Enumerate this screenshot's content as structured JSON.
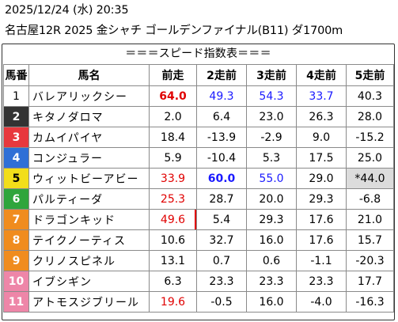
{
  "header": {
    "line1": "2025/12/24 (水) 20:35",
    "line2": "名古屋12R 2025 金シャチ ゴールデンファイナル(B11) ダ1700m"
  },
  "table": {
    "subtitle": "＝＝＝スピード指数表＝＝＝",
    "columns": [
      "馬番",
      "馬名",
      "前走",
      "2走前",
      "3走前",
      "4走前",
      "5走前"
    ],
    "rows": [
      {
        "num": "1",
        "name": "バレアリックシー",
        "v": [
          "64.0",
          "49.3",
          "54.3",
          "33.7",
          "40.3"
        ]
      },
      {
        "num": "2",
        "name": "キタノダロマ",
        "v": [
          "2.0",
          "6.4",
          "23.0",
          "26.3",
          "28.0"
        ]
      },
      {
        "num": "3",
        "name": "カムイパイヤ",
        "v": [
          "18.4",
          "-13.9",
          "-2.9",
          "9.0",
          "-15.2"
        ]
      },
      {
        "num": "4",
        "name": "コンジュラー",
        "v": [
          "5.9",
          "-10.4",
          "5.3",
          "17.5",
          "25.0"
        ]
      },
      {
        "num": "5",
        "name": "ウィットビーアビー",
        "v": [
          "33.9",
          "60.0",
          "55.0",
          "29.0",
          "*44.0"
        ]
      },
      {
        "num": "6",
        "name": "パルティーダ",
        "v": [
          "25.3",
          "28.7",
          "20.0",
          "29.3",
          "-6.8"
        ]
      },
      {
        "num": "7",
        "name": "ドラゴンキッド",
        "v": [
          "49.6",
          "5.4",
          "29.3",
          "17.6",
          "21.0"
        ]
      },
      {
        "num": "8",
        "name": "テイクノーティス",
        "v": [
          "10.6",
          "32.7",
          "16.0",
          "17.6",
          "15.7"
        ]
      },
      {
        "num": "9",
        "name": "クリノスピネル",
        "v": [
          "13.1",
          "0.7",
          "0.6",
          "-1.1",
          "-20.3"
        ]
      },
      {
        "num": "10",
        "name": "イブシギン",
        "v": [
          "6.3",
          "23.3",
          "23.3",
          "23.3",
          "17.7"
        ]
      },
      {
        "num": "11",
        "name": "アトモスジブリール",
        "v": [
          "19.6",
          "-0.5",
          "16.0",
          "-4.0",
          "-16.3"
        ]
      }
    ]
  },
  "colors": {
    "frame": [
      "#ffffff",
      "#333333",
      "#e8383d",
      "#2f6fd6",
      "#f2de1a",
      "#2fa53c",
      "#f08c1e",
      "#ee86a8"
    ],
    "frame_text": [
      "#000000",
      "#ffffff",
      "#ffffff",
      "#ffffff",
      "#000000",
      "#ffffff",
      "#ffffff",
      "#ffffff"
    ],
    "red": "#e00000",
    "blue": "#1a1aff"
  }
}
